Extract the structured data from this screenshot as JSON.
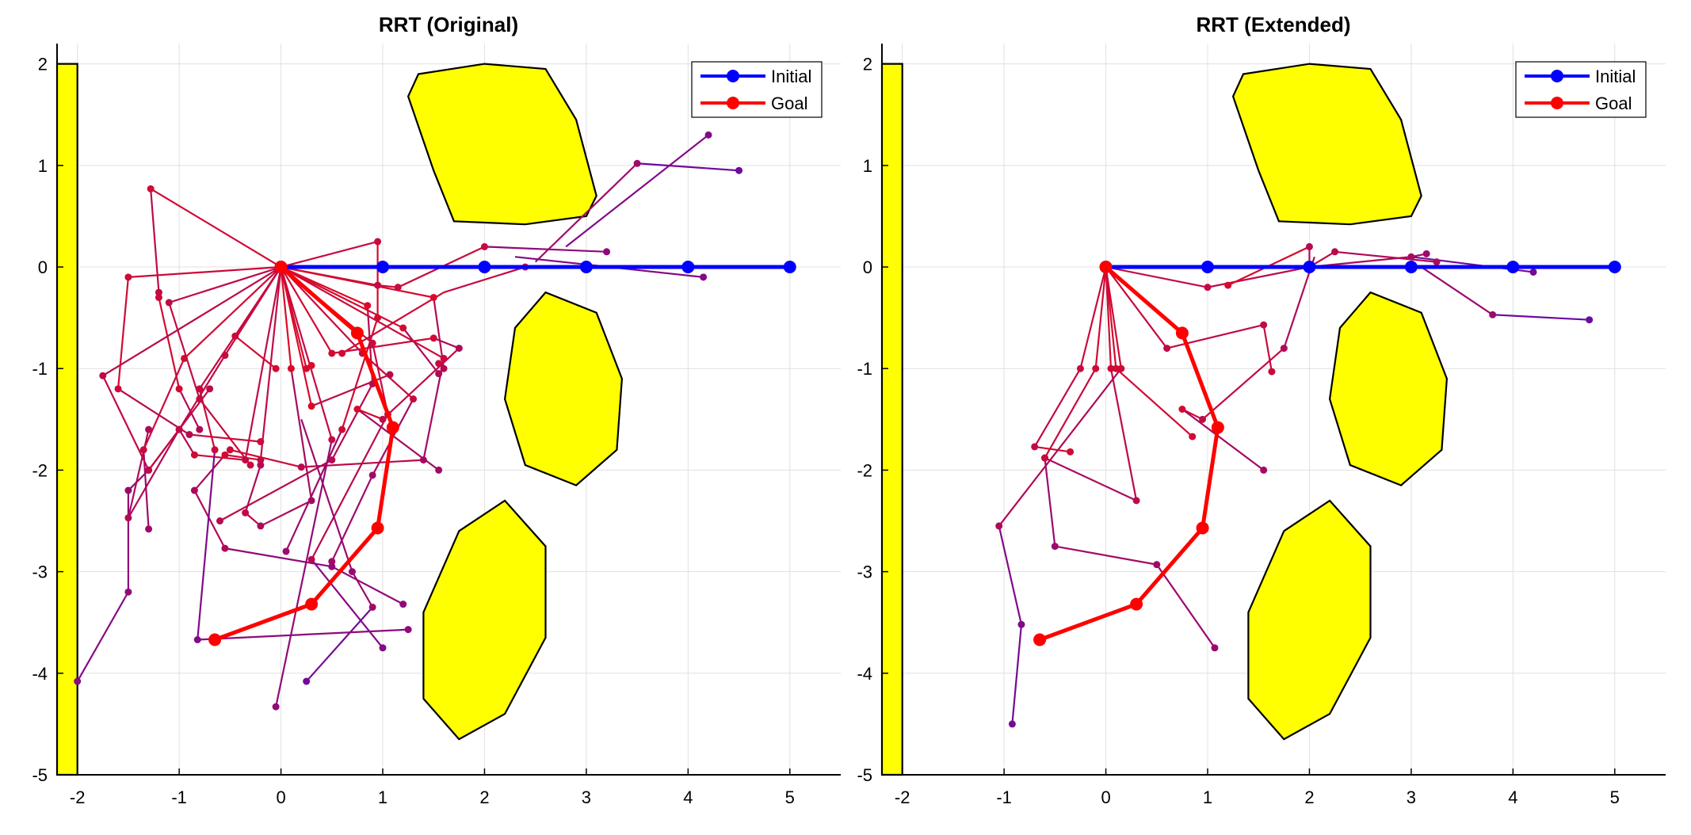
{
  "colors": {
    "initial": "#0000ff",
    "goal": "#ff0000",
    "obstacle_fill": "#ffff00",
    "obstacle_edge": "#000000",
    "grid": "#e0e0e0",
    "axis": "#000000"
  },
  "chart_data": [
    {
      "type": "line",
      "title": "RRT (Original)",
      "xlabel": "",
      "ylabel": "",
      "xlim": [
        -2.2,
        5.5
      ],
      "ylim": [
        -5,
        2.2
      ],
      "xticks": [
        -2,
        -1,
        0,
        1,
        2,
        3,
        4,
        5
      ],
      "yticks": [
        2,
        1,
        0,
        -1,
        -2,
        -3,
        -4,
        -5
      ],
      "xtick_labels": [
        "-2",
        "-1",
        "0",
        "1",
        "2",
        "3",
        "4",
        "5"
      ],
      "ytick_labels": [
        "2",
        "1",
        "0",
        "-1",
        "-2",
        "-3",
        "-4",
        "-5"
      ],
      "grid": true,
      "legend": {
        "location": "top-right",
        "entries": [
          "Initial",
          "Goal"
        ]
      },
      "obstacles": [
        [
          [
            -2.2,
            2.0
          ],
          [
            -2.0,
            2.0
          ],
          [
            -2.0,
            -5.0
          ],
          [
            -2.2,
            -5.0
          ]
        ],
        [
          [
            1.35,
            1.9
          ],
          [
            2.0,
            2.0
          ],
          [
            2.6,
            1.95
          ],
          [
            2.9,
            1.45
          ],
          [
            3.1,
            0.7
          ],
          [
            3.0,
            0.5
          ],
          [
            2.4,
            0.42
          ],
          [
            1.7,
            0.45
          ],
          [
            1.5,
            0.95
          ],
          [
            1.25,
            1.68
          ]
        ],
        [
          [
            2.3,
            -0.6
          ],
          [
            2.6,
            -0.25
          ],
          [
            3.1,
            -0.45
          ],
          [
            3.35,
            -1.1
          ],
          [
            3.3,
            -1.8
          ],
          [
            2.9,
            -2.15
          ],
          [
            2.4,
            -1.95
          ],
          [
            2.2,
            -1.3
          ]
        ],
        [
          [
            1.75,
            -2.6
          ],
          [
            2.2,
            -2.3
          ],
          [
            2.6,
            -2.75
          ],
          [
            2.6,
            -3.65
          ],
          [
            2.2,
            -4.4
          ],
          [
            1.75,
            -4.65
          ],
          [
            1.4,
            -4.25
          ],
          [
            1.4,
            -3.4
          ]
        ]
      ],
      "initial_path": {
        "x": [
          0,
          1,
          2,
          3,
          4,
          5
        ],
        "y": [
          0,
          0,
          0,
          0,
          0,
          0
        ]
      },
      "goal_path": {
        "x": [
          0,
          0.75,
          1.1,
          0.95,
          0.3,
          -0.65
        ],
        "y": [
          0,
          -0.65,
          -1.58,
          -2.57,
          -3.32,
          -3.67
        ]
      },
      "tree_edges": [
        [
          0,
          0,
          0.95,
          -0.18
        ],
        [
          0.95,
          -0.18,
          1.15,
          -0.2
        ],
        [
          1.15,
          -0.2,
          2.0,
          0.2
        ],
        [
          2.0,
          0.2,
          3.2,
          0.15
        ],
        [
          2.3,
          0.1,
          4.15,
          -0.1
        ],
        [
          2.5,
          0.05,
          3.5,
          1.02
        ],
        [
          3.5,
          1.02,
          4.5,
          0.95
        ],
        [
          2.8,
          0.2,
          4.2,
          1.3
        ],
        [
          1.6,
          -0.25,
          2.4,
          0.0
        ],
        [
          1.6,
          -0.25,
          0.6,
          -0.85
        ],
        [
          0,
          0,
          1.2,
          -0.6
        ],
        [
          1.2,
          -0.6,
          1.55,
          -1.05
        ],
        [
          0,
          0,
          0.5,
          -0.85
        ],
        [
          0.5,
          -0.85,
          1.5,
          -0.7
        ],
        [
          1.5,
          -0.7,
          1.75,
          -0.8
        ],
        [
          1.75,
          -0.8,
          1.0,
          -1.5
        ],
        [
          1.0,
          -1.5,
          0.75,
          -1.4
        ],
        [
          0.75,
          -1.4,
          1.55,
          -2.0
        ],
        [
          0,
          0,
          -0.2,
          -1.9
        ],
        [
          -0.2,
          -1.9,
          -0.55,
          -1.85
        ],
        [
          -0.55,
          -1.85,
          -0.85,
          -2.2
        ],
        [
          -0.85,
          -2.2,
          -0.55,
          -2.77
        ],
        [
          -0.55,
          -2.77,
          0.5,
          -2.95
        ],
        [
          0.5,
          -2.95,
          1.2,
          -3.32
        ],
        [
          0,
          0,
          0.1,
          -1.0
        ],
        [
          0.1,
          -1.0,
          0.3,
          -2.3
        ],
        [
          0.3,
          -2.3,
          -0.2,
          -2.55
        ],
        [
          -0.2,
          -2.55,
          -0.35,
          -2.42
        ],
        [
          -0.35,
          -2.42,
          -0.2,
          -1.95
        ],
        [
          0,
          0,
          -0.35,
          -1.9
        ],
        [
          -0.35,
          -1.9,
          -0.85,
          -1.85
        ],
        [
          -0.85,
          -1.85,
          -1.0,
          -1.6
        ],
        [
          -1.0,
          -1.6,
          -1.3,
          -2.0
        ],
        [
          -1.3,
          -2.0,
          -1.5,
          -2.2
        ],
        [
          -1.5,
          -2.2,
          -1.5,
          -3.2
        ],
        [
          -1.5,
          -3.2,
          -2.0,
          -4.08
        ],
        [
          0,
          0,
          -0.55,
          -0.87
        ],
        [
          -0.55,
          -0.87,
          -1.0,
          -1.6
        ],
        [
          -1.0,
          -1.6,
          -1.5,
          -2.47
        ],
        [
          -1.5,
          -2.47,
          -1.3,
          -1.6
        ],
        [
          0,
          0,
          -0.95,
          -0.9
        ],
        [
          -0.95,
          -0.9,
          -1.35,
          -1.8
        ],
        [
          -1.35,
          -1.8,
          -1.3,
          -2.58
        ],
        [
          0,
          0,
          -1.28,
          0.77
        ],
        [
          -1.28,
          0.77,
          -1.2,
          -0.25
        ],
        [
          -1.2,
          -0.25,
          -1.2,
          -0.3
        ],
        [
          -1.2,
          -0.3,
          -1.0,
          -1.2
        ],
        [
          -1.0,
          -1.2,
          -0.8,
          -1.6
        ],
        [
          0,
          0,
          -1.75,
          -1.07
        ],
        [
          -1.75,
          -1.07,
          -1.3,
          -2.0
        ],
        [
          -1.3,
          -2.0,
          -0.7,
          -1.2
        ],
        [
          0,
          0,
          -1.5,
          -0.1
        ],
        [
          -1.5,
          -0.1,
          -1.6,
          -1.2
        ],
        [
          -1.6,
          -1.2,
          -0.9,
          -1.65
        ],
        [
          -0.9,
          -1.65,
          -0.2,
          -1.72
        ],
        [
          0,
          0,
          -1.1,
          -0.35
        ],
        [
          -1.1,
          -0.35,
          -0.8,
          -1.3
        ],
        [
          -0.8,
          -1.3,
          -0.3,
          -1.95
        ],
        [
          0,
          0,
          -0.45,
          -0.68
        ],
        [
          -0.45,
          -0.68,
          -0.05,
          -1.0
        ],
        [
          0,
          0,
          0.3,
          -1.37
        ],
        [
          0.3,
          -1.37,
          1.07,
          -1.06
        ],
        [
          0,
          0,
          0.25,
          -1.0
        ],
        [
          0.25,
          -1.0,
          0.3,
          -0.97
        ],
        [
          0,
          0,
          0.8,
          -0.85
        ],
        [
          0.8,
          -0.85,
          1.3,
          -1.3
        ],
        [
          1.3,
          -1.3,
          0.9,
          -2.05
        ],
        [
          0.9,
          -2.05,
          0.5,
          -2.9
        ],
        [
          0,
          0,
          1.6,
          -0.9
        ],
        [
          1.6,
          -0.9,
          1.4,
          -1.9
        ],
        [
          1.4,
          -1.9,
          0.2,
          -1.97
        ],
        [
          0.2,
          -1.97,
          -0.5,
          -1.8
        ],
        [
          0,
          0,
          0.9,
          -0.75
        ],
        [
          0.9,
          -0.75,
          1.05,
          -1.45
        ],
        [
          1.05,
          -1.45,
          0.3,
          -2.88
        ],
        [
          0.3,
          -2.88,
          1.0,
          -3.75
        ],
        [
          0,
          0,
          0.85,
          -0.38
        ],
        [
          0.85,
          -0.38,
          0.9,
          -1.15
        ],
        [
          0.9,
          -1.15,
          0.5,
          -1.9
        ],
        [
          0.5,
          -1.9,
          -0.6,
          -2.5
        ],
        [
          0,
          0,
          0.95,
          0.25
        ],
        [
          0.95,
          0.25,
          0.95,
          -0.5
        ],
        [
          0.95,
          -0.5,
          0.6,
          -1.6
        ],
        [
          0.6,
          -1.6,
          0.05,
          -2.8
        ],
        [
          0,
          0,
          0.5,
          -1.7
        ],
        [
          0.5,
          -1.7,
          -0.05,
          -4.33
        ],
        [
          0.2,
          -1.5,
          0.7,
          -3.0
        ],
        [
          0.7,
          -3.0,
          0.9,
          -3.35
        ],
        [
          0.9,
          -3.35,
          0.25,
          -4.08
        ],
        [
          0,
          0,
          -0.8,
          -1.2
        ],
        [
          -0.8,
          -1.2,
          -0.65,
          -1.8
        ],
        [
          -0.65,
          -1.8,
          -0.82,
          -3.67
        ],
        [
          -0.82,
          -3.67,
          1.25,
          -3.57
        ],
        [
          0,
          0,
          1.5,
          -0.3
        ],
        [
          1.5,
          -0.3,
          1.6,
          -1.0
        ],
        [
          1.6,
          -1.0,
          1.55,
          -0.95
        ]
      ]
    },
    {
      "type": "line",
      "title": "RRT (Extended)",
      "xlabel": "",
      "ylabel": "",
      "xlim": [
        -2.2,
        5.5
      ],
      "ylim": [
        -5,
        2.2
      ],
      "xticks": [
        -2,
        -1,
        0,
        1,
        2,
        3,
        4,
        5
      ],
      "yticks": [
        2,
        1,
        0,
        -1,
        -2,
        -3,
        -4,
        -5
      ],
      "xtick_labels": [
        "-2",
        "-1",
        "0",
        "1",
        "2",
        "3",
        "4",
        "5"
      ],
      "ytick_labels": [
        "2",
        "1",
        "0",
        "-1",
        "-2",
        "-3",
        "-4",
        "-5"
      ],
      "grid": true,
      "legend": {
        "location": "top-right",
        "entries": [
          "Initial",
          "Goal"
        ]
      },
      "obstacles": [
        [
          [
            -2.2,
            2.0
          ],
          [
            -2.0,
            2.0
          ],
          [
            -2.0,
            -5.0
          ],
          [
            -2.2,
            -5.0
          ]
        ],
        [
          [
            1.35,
            1.9
          ],
          [
            2.0,
            2.0
          ],
          [
            2.6,
            1.95
          ],
          [
            2.9,
            1.45
          ],
          [
            3.1,
            0.7
          ],
          [
            3.0,
            0.5
          ],
          [
            2.4,
            0.42
          ],
          [
            1.7,
            0.45
          ],
          [
            1.5,
            0.95
          ],
          [
            1.25,
            1.68
          ]
        ],
        [
          [
            2.3,
            -0.6
          ],
          [
            2.6,
            -0.25
          ],
          [
            3.1,
            -0.45
          ],
          [
            3.35,
            -1.1
          ],
          [
            3.3,
            -1.8
          ],
          [
            2.9,
            -2.15
          ],
          [
            2.4,
            -1.95
          ],
          [
            2.2,
            -1.3
          ]
        ],
        [
          [
            1.75,
            -2.6
          ],
          [
            2.2,
            -2.3
          ],
          [
            2.6,
            -2.75
          ],
          [
            2.6,
            -3.65
          ],
          [
            2.2,
            -4.4
          ],
          [
            1.75,
            -4.65
          ],
          [
            1.4,
            -4.25
          ],
          [
            1.4,
            -3.4
          ]
        ]
      ],
      "initial_path": {
        "x": [
          0,
          1,
          2,
          3,
          4,
          5
        ],
        "y": [
          0,
          0,
          0,
          0,
          0,
          0
        ]
      },
      "goal_path": {
        "x": [
          0,
          0.75,
          1.1,
          0.95,
          0.3,
          -0.65
        ],
        "y": [
          0,
          -0.65,
          -1.58,
          -2.57,
          -3.32,
          -3.67
        ]
      },
      "tree_edges": [
        [
          0,
          0,
          1.0,
          -0.2
        ],
        [
          1.0,
          -0.2,
          2.0,
          0.0
        ],
        [
          2.0,
          0.0,
          3.0,
          0.1
        ],
        [
          3.0,
          0.1,
          4.2,
          -0.05
        ],
        [
          3.0,
          0.1,
          3.15,
          0.13
        ],
        [
          3.1,
          0.0,
          3.8,
          -0.47
        ],
        [
          3.8,
          -0.47,
          4.75,
          -0.52
        ],
        [
          2.0,
          0.0,
          2.25,
          0.15
        ],
        [
          2.25,
          0.15,
          3.25,
          0.05
        ],
        [
          2.0,
          0.0,
          2.0,
          0.2
        ],
        [
          2.0,
          0.2,
          1.2,
          -0.18
        ],
        [
          0,
          0,
          0.6,
          -0.8
        ],
        [
          0.6,
          -0.8,
          1.55,
          -0.57
        ],
        [
          1.55,
          -0.57,
          1.63,
          -1.03
        ],
        [
          2.05,
          0.1,
          1.75,
          -0.8
        ],
        [
          1.75,
          -0.8,
          0.95,
          -1.5
        ],
        [
          0.95,
          -1.5,
          0.75,
          -1.4
        ],
        [
          0.75,
          -1.4,
          1.55,
          -2.0
        ],
        [
          0,
          0,
          0.1,
          -1.0
        ],
        [
          0.1,
          -1.0,
          0.85,
          -1.67
        ],
        [
          0,
          0,
          0.05,
          -1.0
        ],
        [
          0.05,
          -1.0,
          0.3,
          -2.3
        ],
        [
          0.3,
          -2.3,
          -0.6,
          -1.88
        ],
        [
          0,
          0,
          -0.1,
          -1.0
        ],
        [
          -0.1,
          -1.0,
          -0.6,
          -1.88
        ],
        [
          -0.6,
          -1.88,
          -0.5,
          -2.75
        ],
        [
          -0.5,
          -2.75,
          0.5,
          -2.93
        ],
        [
          0.5,
          -2.93,
          1.07,
          -3.75
        ],
        [
          0,
          0,
          -0.25,
          -1.0
        ],
        [
          -0.25,
          -1.0,
          -0.7,
          -1.77
        ],
        [
          -0.7,
          -1.77,
          -0.35,
          -1.82
        ],
        [
          0,
          0,
          0.15,
          -1.0
        ],
        [
          0.15,
          -1.0,
          -1.05,
          -2.55
        ],
        [
          -1.05,
          -2.55,
          -0.83,
          -3.52
        ],
        [
          -0.83,
          -3.52,
          -0.92,
          -4.5
        ]
      ]
    }
  ]
}
